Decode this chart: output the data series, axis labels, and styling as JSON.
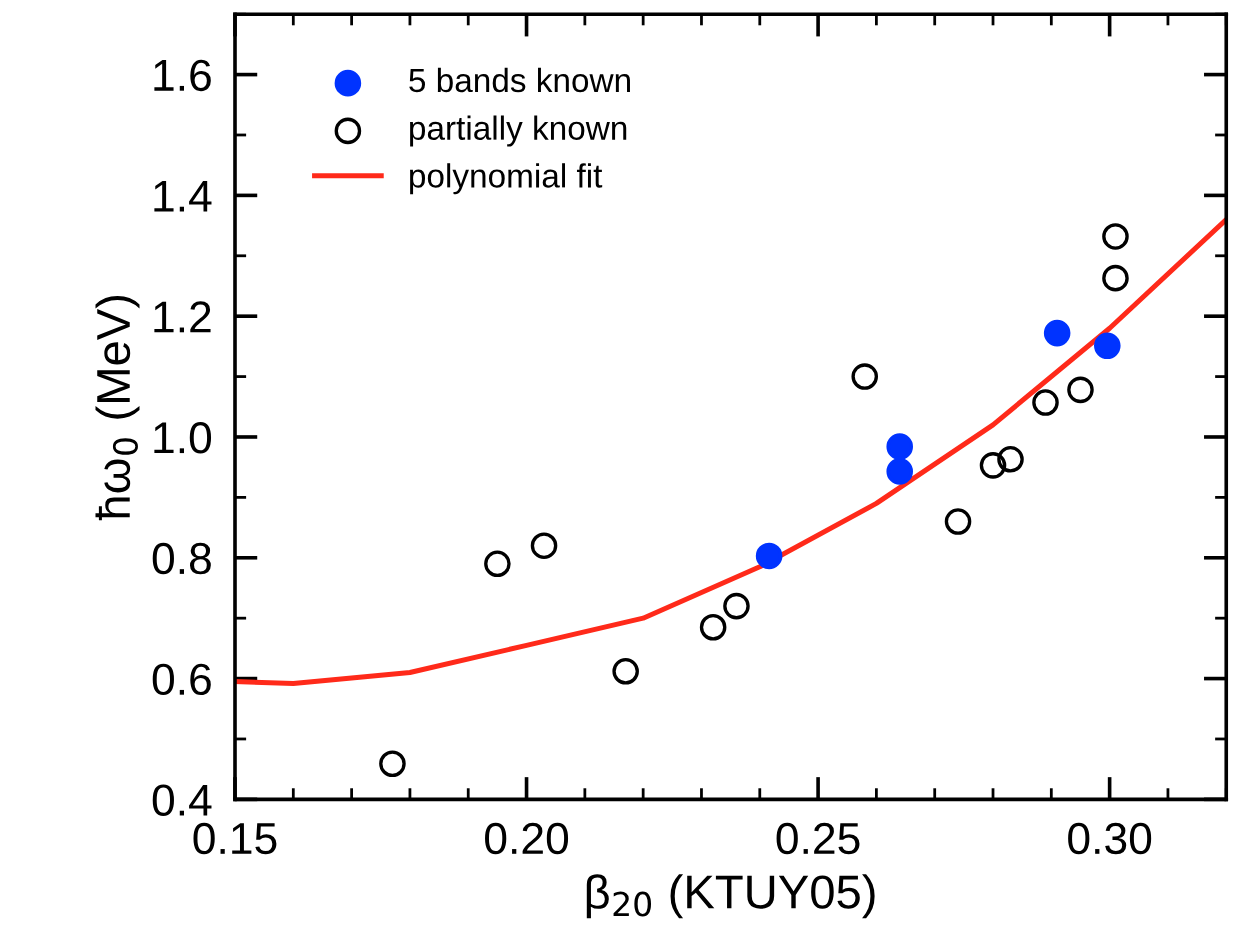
{
  "chart_data": {
    "type": "scatter",
    "xlabel": "β$_{20}$ (KTUY05)",
    "ylabel": "ħω$_{0}$ (MeV)",
    "xlim": [
      0.15,
      0.32
    ],
    "xticks": [
      {
        "value": 0.15,
        "label": "0.15"
      },
      {
        "value": 0.2,
        "label": "0.20"
      },
      {
        "value": 0.25,
        "label": "0.25"
      },
      {
        "value": 0.3,
        "label": "0.30"
      }
    ],
    "ylim": [
      0.4,
      1.7
    ],
    "yticks": [
      {
        "value": 0.4,
        "label": "0.4"
      },
      {
        "value": 0.6,
        "label": "0.6"
      },
      {
        "value": 0.8,
        "label": "0.8"
      },
      {
        "value": 1.0,
        "label": "1.0"
      },
      {
        "value": 1.2,
        "label": "1.2"
      },
      {
        "value": 1.4,
        "label": "1.4"
      },
      {
        "value": 1.6,
        "label": "1.6"
      }
    ],
    "legend": "top left",
    "grid": false,
    "series": [
      {
        "name": "5 bands known",
        "color": "#0033ff",
        "marker": "circle",
        "x": [
          0.2416,
          0.264,
          0.264,
          0.291,
          0.2996
        ],
        "values": [
          0.803,
          0.943,
          0.984,
          1.172,
          1.151
        ]
      },
      {
        "name": "partially known",
        "color": "#000000",
        "marker": "circle",
        "x": [
          0.177,
          0.195,
          0.203,
          0.217,
          0.232,
          0.236,
          0.258,
          0.274,
          0.28,
          0.283,
          0.289,
          0.295,
          0.301,
          0.301
        ],
        "values": [
          0.459,
          0.79,
          0.82,
          0.612,
          0.685,
          0.72,
          1.1,
          0.86,
          0.953,
          0.963,
          1.057,
          1.078,
          1.263,
          1.332
        ]
      },
      {
        "name": "polynomial fit",
        "type": "line",
        "color": "#ff2a1a",
        "marker": "none",
        "line_style": "solid",
        "x": [
          0.15,
          0.16,
          0.18,
          0.2,
          0.22,
          0.24,
          0.26,
          0.28,
          0.3,
          0.32
        ],
        "values": [
          0.595,
          0.592,
          0.61,
          0.655,
          0.7,
          0.785,
          0.89,
          1.02,
          1.18,
          1.36
        ]
      }
    ]
  }
}
